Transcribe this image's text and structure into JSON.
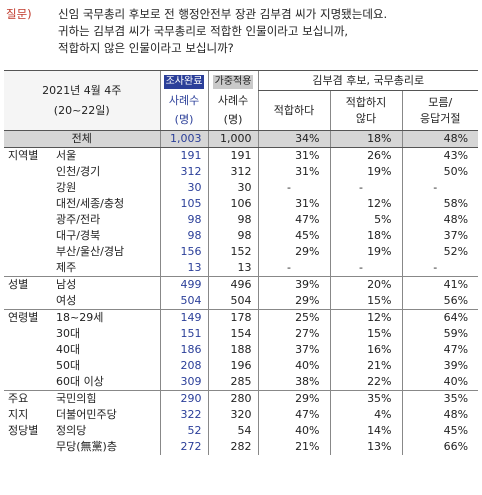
{
  "question": {
    "label": "질문)",
    "lines": [
      "신임 국무총리 후보로 전 행정안전부 장관 김부겸 씨가 지명됐는데요.",
      "귀하는 김부겸 씨가 국무총리로 적합한 인물이라고 보십니까,",
      "적합하지 않은 인물이라고 보십니까?"
    ]
  },
  "header": {
    "date": "2021년 4월 4주",
    "date_sub": "(20~22일)",
    "survey_done": "조사완료",
    "weighted": "가중적용",
    "sample_line1": "사례수",
    "sample_line2": "(명)",
    "kim_title": "김부겸 후보, 국무총리로",
    "opt1": "적합하다",
    "opt2_line1": "적합하지",
    "opt2_line2": "않다",
    "opt3_line1": "모름/",
    "opt3_line2": "응답거절"
  },
  "total": {
    "label": "전체",
    "n1": "1,003",
    "n2": "1,000",
    "p1": "34%",
    "p2": "18%",
    "p3": "48%"
  },
  "groups": [
    {
      "name": "지역별",
      "rows": [
        {
          "label": "서울",
          "n1": "191",
          "n2": "191",
          "p1": "31%",
          "p2": "26%",
          "p3": "43%"
        },
        {
          "label": "인천/경기",
          "n1": "312",
          "n2": "312",
          "p1": "31%",
          "p2": "19%",
          "p3": "50%"
        },
        {
          "label": "강원",
          "n1": "30",
          "n2": "30",
          "p1": "-",
          "p2": "-",
          "p3": "-"
        },
        {
          "label": "대전/세종/충청",
          "n1": "105",
          "n2": "106",
          "p1": "31%",
          "p2": "12%",
          "p3": "58%"
        },
        {
          "label": "광주/전라",
          "n1": "98",
          "n2": "98",
          "p1": "47%",
          "p2": "5%",
          "p3": "48%"
        },
        {
          "label": "대구/경북",
          "n1": "98",
          "n2": "98",
          "p1": "45%",
          "p2": "18%",
          "p3": "37%"
        },
        {
          "label": "부산/울산/경남",
          "n1": "156",
          "n2": "152",
          "p1": "29%",
          "p2": "19%",
          "p3": "52%"
        },
        {
          "label": "제주",
          "n1": "13",
          "n2": "13",
          "p1": "-",
          "p2": "-",
          "p3": "-"
        }
      ]
    },
    {
      "name": "성별",
      "rows": [
        {
          "label": "남성",
          "n1": "499",
          "n2": "496",
          "p1": "39%",
          "p2": "20%",
          "p3": "41%"
        },
        {
          "label": "여성",
          "n1": "504",
          "n2": "504",
          "p1": "29%",
          "p2": "15%",
          "p3": "56%"
        }
      ]
    },
    {
      "name": "연령별",
      "rows": [
        {
          "label": "18~29세",
          "n1": "149",
          "n2": "178",
          "p1": "25%",
          "p2": "12%",
          "p3": "64%"
        },
        {
          "label": "30대",
          "n1": "151",
          "n2": "154",
          "p1": "27%",
          "p2": "15%",
          "p3": "59%"
        },
        {
          "label": "40대",
          "n1": "186",
          "n2": "188",
          "p1": "37%",
          "p2": "16%",
          "p3": "47%"
        },
        {
          "label": "50대",
          "n1": "208",
          "n2": "196",
          "p1": "40%",
          "p2": "21%",
          "p3": "39%"
        },
        {
          "label": "60대 이상",
          "n1": "309",
          "n2": "285",
          "p1": "38%",
          "p2": "22%",
          "p3": "40%"
        }
      ]
    },
    {
      "name": "주요 지지 정당별",
      "name_lines": [
        "주요",
        "지지",
        "정당별"
      ],
      "rows": [
        {
          "label": "국민의힘",
          "n1": "290",
          "n2": "280",
          "p1": "29%",
          "p2": "35%",
          "p3": "35%"
        },
        {
          "label": "더불어민주당",
          "n1": "322",
          "n2": "320",
          "p1": "47%",
          "p2": "4%",
          "p3": "48%"
        },
        {
          "label": "정의당",
          "n1": "52",
          "n2": "54",
          "p1": "40%",
          "p2": "14%",
          "p3": "45%"
        },
        {
          "label": "무당(無黨)층",
          "n1": "272",
          "n2": "282",
          "p1": "21%",
          "p2": "13%",
          "p3": "66%"
        }
      ]
    }
  ]
}
